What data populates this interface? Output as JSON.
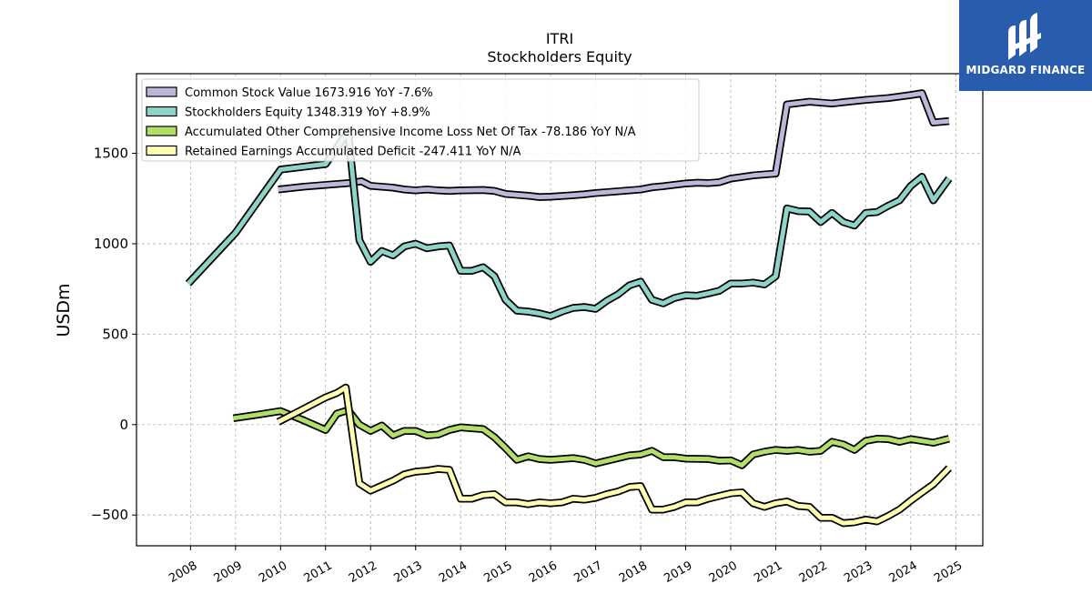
{
  "logo": {
    "text": "MIDGARD FINANCE"
  },
  "chart_data": {
    "type": "line",
    "title": "ITRI",
    "subtitle": "Stockholders  Equity",
    "ylabel": "USDm",
    "xlabel": "",
    "ylim": [
      -670,
      1940
    ],
    "xlim": [
      2006.8,
      2025.6
    ],
    "yticks": [
      -500,
      0,
      500,
      1000,
      1500
    ],
    "ytick_labels": [
      "−500",
      "0",
      "500",
      "1000",
      "1500"
    ],
    "xticks": [
      2008,
      2009,
      2010,
      2011,
      2012,
      2013,
      2014,
      2015,
      2016,
      2017,
      2018,
      2019,
      2020,
      2021,
      2022,
      2023,
      2024,
      2025
    ],
    "xtick_labels": [
      "2008",
      "2009",
      "2010",
      "2011",
      "2012",
      "2013",
      "2014",
      "2015",
      "2016",
      "2017",
      "2018",
      "2019",
      "2020",
      "2021",
      "2022",
      "2023",
      "2024",
      "2025"
    ],
    "grid": true,
    "legend_position": "top-left",
    "series": [
      {
        "name": "Common Stock Value  1673.916 YoY -7.6%",
        "color": "#bcb8d9",
        "points": [
          [
            2009.95,
            1300
          ],
          [
            2010.5,
            1315
          ],
          [
            2011.0,
            1325
          ],
          [
            2011.5,
            1335
          ],
          [
            2011.8,
            1345
          ],
          [
            2012.0,
            1320
          ],
          [
            2012.5,
            1310
          ],
          [
            2012.75,
            1300
          ],
          [
            2013.0,
            1295
          ],
          [
            2013.25,
            1300
          ],
          [
            2013.5,
            1295
          ],
          [
            2013.75,
            1292
          ],
          [
            2014.0,
            1295
          ],
          [
            2014.5,
            1297
          ],
          [
            2014.75,
            1292
          ],
          [
            2015.0,
            1275
          ],
          [
            2015.5,
            1265
          ],
          [
            2015.75,
            1258
          ],
          [
            2016.0,
            1260
          ],
          [
            2016.5,
            1268
          ],
          [
            2016.75,
            1273
          ],
          [
            2017.0,
            1280
          ],
          [
            2017.5,
            1290
          ],
          [
            2018.0,
            1300
          ],
          [
            2018.25,
            1312
          ],
          [
            2018.5,
            1318
          ],
          [
            2019.0,
            1333
          ],
          [
            2019.25,
            1337
          ],
          [
            2019.5,
            1335
          ],
          [
            2019.75,
            1340
          ],
          [
            2020.0,
            1360
          ],
          [
            2020.5,
            1378
          ],
          [
            2021.0,
            1388
          ],
          [
            2021.25,
            1770
          ],
          [
            2021.75,
            1785
          ],
          [
            2022.0,
            1780
          ],
          [
            2022.25,
            1775
          ],
          [
            2022.5,
            1782
          ],
          [
            2023.0,
            1795
          ],
          [
            2023.5,
            1805
          ],
          [
            2024.0,
            1822
          ],
          [
            2024.25,
            1832
          ],
          [
            2024.5,
            1670
          ],
          [
            2024.85,
            1678
          ]
        ]
      },
      {
        "name": "Stockholders Equity  1348.319 YoY +8.9%",
        "color": "#8dd3c7",
        "points": [
          [
            2007.95,
            780
          ],
          [
            2009.0,
            1060
          ],
          [
            2010.0,
            1410
          ],
          [
            2010.5,
            1425
          ],
          [
            2011.0,
            1440
          ],
          [
            2011.5,
            1620
          ],
          [
            2011.75,
            1020
          ],
          [
            2012.0,
            900
          ],
          [
            2012.25,
            960
          ],
          [
            2012.5,
            935
          ],
          [
            2012.75,
            985
          ],
          [
            2013.0,
            1000
          ],
          [
            2013.25,
            975
          ],
          [
            2013.5,
            985
          ],
          [
            2013.75,
            990
          ],
          [
            2014.0,
            850
          ],
          [
            2014.25,
            850
          ],
          [
            2014.5,
            870
          ],
          [
            2014.75,
            820
          ],
          [
            2015.0,
            690
          ],
          [
            2015.25,
            630
          ],
          [
            2015.5,
            625
          ],
          [
            2015.75,
            615
          ],
          [
            2016.0,
            600
          ],
          [
            2016.25,
            625
          ],
          [
            2016.5,
            645
          ],
          [
            2016.75,
            650
          ],
          [
            2017.0,
            640
          ],
          [
            2017.25,
            685
          ],
          [
            2017.5,
            720
          ],
          [
            2017.75,
            770
          ],
          [
            2018.0,
            790
          ],
          [
            2018.25,
            690
          ],
          [
            2018.5,
            670
          ],
          [
            2018.75,
            700
          ],
          [
            2019.0,
            715
          ],
          [
            2019.25,
            712
          ],
          [
            2019.5,
            725
          ],
          [
            2019.75,
            740
          ],
          [
            2020.0,
            780
          ],
          [
            2020.25,
            780
          ],
          [
            2020.5,
            785
          ],
          [
            2020.75,
            775
          ],
          [
            2021.0,
            820
          ],
          [
            2021.25,
            1195
          ],
          [
            2021.5,
            1180
          ],
          [
            2021.75,
            1178
          ],
          [
            2022.0,
            1120
          ],
          [
            2022.25,
            1170
          ],
          [
            2022.5,
            1120
          ],
          [
            2022.75,
            1100
          ],
          [
            2023.0,
            1170
          ],
          [
            2023.25,
            1175
          ],
          [
            2023.5,
            1210
          ],
          [
            2023.75,
            1240
          ],
          [
            2024.0,
            1320
          ],
          [
            2024.25,
            1370
          ],
          [
            2024.5,
            1240
          ],
          [
            2024.85,
            1360
          ]
        ]
      },
      {
        "name": "Accumulated Other Comprehensive Income Loss Net Of Tax  -78.186 YoY N/A",
        "color": "#b3de69",
        "points": [
          [
            2008.95,
            35
          ],
          [
            2009.5,
            55
          ],
          [
            2010.0,
            75
          ],
          [
            2010.5,
            25
          ],
          [
            2011.0,
            -30
          ],
          [
            2011.25,
            60
          ],
          [
            2011.5,
            80
          ],
          [
            2011.75,
            0
          ],
          [
            2012.0,
            -35
          ],
          [
            2012.25,
            -5
          ],
          [
            2012.5,
            -60
          ],
          [
            2012.75,
            -35
          ],
          [
            2013.0,
            -35
          ],
          [
            2013.25,
            -60
          ],
          [
            2013.5,
            -55
          ],
          [
            2013.75,
            -30
          ],
          [
            2014.0,
            -15
          ],
          [
            2014.5,
            -25
          ],
          [
            2014.75,
            -70
          ],
          [
            2015.0,
            -130
          ],
          [
            2015.25,
            -195
          ],
          [
            2015.5,
            -175
          ],
          [
            2015.75,
            -190
          ],
          [
            2016.0,
            -195
          ],
          [
            2016.5,
            -185
          ],
          [
            2016.75,
            -195
          ],
          [
            2017.0,
            -215
          ],
          [
            2017.5,
            -185
          ],
          [
            2017.75,
            -170
          ],
          [
            2018.0,
            -165
          ],
          [
            2018.25,
            -145
          ],
          [
            2018.5,
            -180
          ],
          [
            2018.75,
            -180
          ],
          [
            2019.0,
            -188
          ],
          [
            2019.5,
            -190
          ],
          [
            2019.75,
            -200
          ],
          [
            2020.0,
            -198
          ],
          [
            2020.25,
            -225
          ],
          [
            2020.5,
            -165
          ],
          [
            2020.75,
            -150
          ],
          [
            2021.0,
            -140
          ],
          [
            2021.25,
            -145
          ],
          [
            2021.5,
            -140
          ],
          [
            2021.75,
            -150
          ],
          [
            2022.0,
            -145
          ],
          [
            2022.25,
            -95
          ],
          [
            2022.5,
            -110
          ],
          [
            2022.75,
            -140
          ],
          [
            2023.0,
            -90
          ],
          [
            2023.25,
            -78
          ],
          [
            2023.5,
            -80
          ],
          [
            2023.75,
            -95
          ],
          [
            2024.0,
            -80
          ],
          [
            2024.5,
            -100
          ],
          [
            2024.85,
            -78
          ]
        ]
      },
      {
        "name": "Retained Earnings Accumulated Deficit  -247.411 YoY N/A",
        "color": "#ffffb3",
        "points": [
          [
            2009.95,
            15
          ],
          [
            2010.5,
            85
          ],
          [
            2011.0,
            150
          ],
          [
            2011.25,
            175
          ],
          [
            2011.45,
            205
          ],
          [
            2011.75,
            -325
          ],
          [
            2012.0,
            -365
          ],
          [
            2012.5,
            -310
          ],
          [
            2012.75,
            -275
          ],
          [
            2013.0,
            -260
          ],
          [
            2013.25,
            -255
          ],
          [
            2013.5,
            -245
          ],
          [
            2013.75,
            -250
          ],
          [
            2014.0,
            -410
          ],
          [
            2014.25,
            -410
          ],
          [
            2014.5,
            -390
          ],
          [
            2014.75,
            -385
          ],
          [
            2015.0,
            -430
          ],
          [
            2015.25,
            -430
          ],
          [
            2015.5,
            -440
          ],
          [
            2015.75,
            -430
          ],
          [
            2016.0,
            -435
          ],
          [
            2016.25,
            -430
          ],
          [
            2016.5,
            -410
          ],
          [
            2016.75,
            -415
          ],
          [
            2017.0,
            -405
          ],
          [
            2017.25,
            -385
          ],
          [
            2017.5,
            -370
          ],
          [
            2017.75,
            -345
          ],
          [
            2018.0,
            -340
          ],
          [
            2018.25,
            -470
          ],
          [
            2018.5,
            -470
          ],
          [
            2018.75,
            -455
          ],
          [
            2019.0,
            -430
          ],
          [
            2019.25,
            -430
          ],
          [
            2019.5,
            -410
          ],
          [
            2019.75,
            -395
          ],
          [
            2020.0,
            -380
          ],
          [
            2020.25,
            -375
          ],
          [
            2020.5,
            -435
          ],
          [
            2020.75,
            -455
          ],
          [
            2021.0,
            -435
          ],
          [
            2021.25,
            -425
          ],
          [
            2021.5,
            -450
          ],
          [
            2021.75,
            -455
          ],
          [
            2022.0,
            -515
          ],
          [
            2022.25,
            -515
          ],
          [
            2022.5,
            -545
          ],
          [
            2022.75,
            -540
          ],
          [
            2023.0,
            -525
          ],
          [
            2023.25,
            -535
          ],
          [
            2023.5,
            -505
          ],
          [
            2023.75,
            -470
          ],
          [
            2024.0,
            -420
          ],
          [
            2024.25,
            -375
          ],
          [
            2024.5,
            -330
          ],
          [
            2024.85,
            -240
          ]
        ]
      }
    ]
  }
}
